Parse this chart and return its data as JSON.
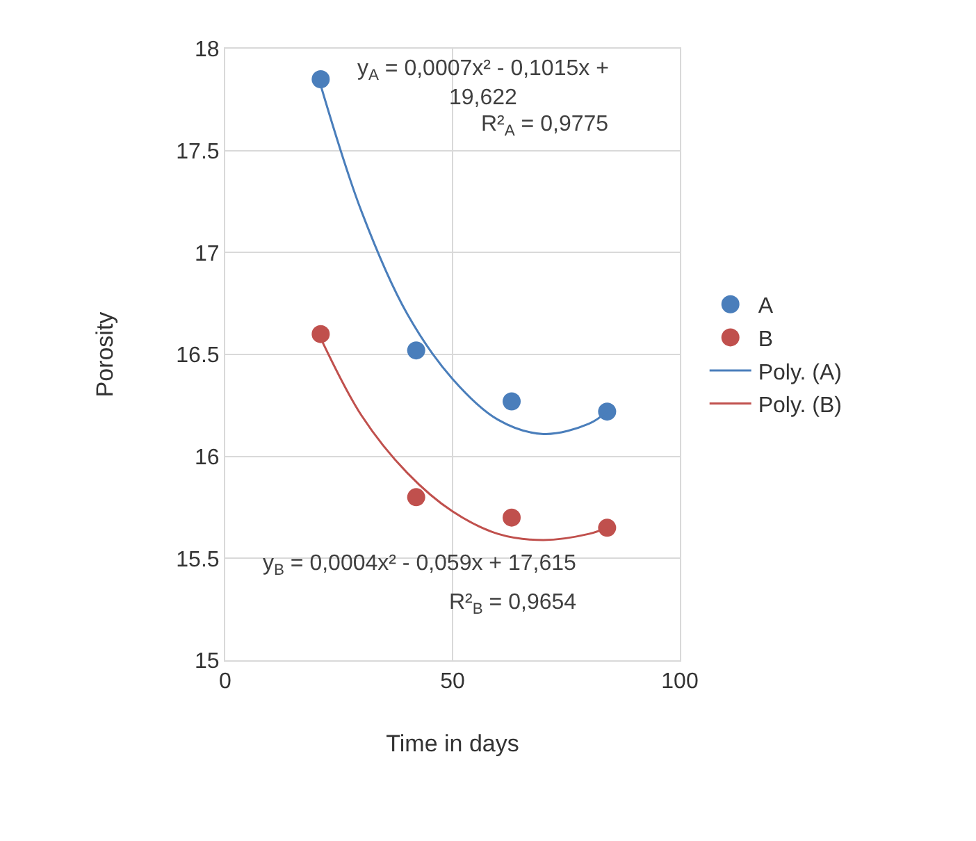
{
  "chart_data": {
    "type": "scatter",
    "xlabel": "Time in days",
    "ylabel": "Porosity",
    "xlim": [
      0,
      100
    ],
    "xticks": [
      0,
      50,
      100
    ],
    "ylim": [
      15,
      18
    ],
    "yticks": [
      15,
      15.5,
      16,
      16.5,
      17,
      17.5,
      18
    ],
    "grid": true,
    "legend": "right",
    "series": [
      {
        "name": "A",
        "marker": "circle",
        "color": "#4a7ebb",
        "x": [
          21,
          42,
          63,
          84
        ],
        "values": [
          17.85,
          16.52,
          16.27,
          16.22
        ]
      },
      {
        "name": "B",
        "marker": "circle",
        "color": "#c0504d",
        "x": [
          21,
          42,
          63,
          84
        ],
        "values": [
          16.6,
          15.8,
          15.7,
          15.65
        ]
      },
      {
        "name": "Poly. (A)",
        "type": "line",
        "marker": "none",
        "color": "#4a7ebb",
        "x": [
          21,
          30,
          40,
          50,
          60,
          70,
          80,
          84
        ],
        "values": [
          17.82,
          17.2,
          16.7,
          16.38,
          16.18,
          16.11,
          16.16,
          16.22
        ]
      },
      {
        "name": "Poly. (B)",
        "type": "line",
        "marker": "none",
        "color": "#c0504d",
        "x": [
          21,
          30,
          40,
          50,
          60,
          70,
          80,
          84
        ],
        "values": [
          16.58,
          16.2,
          15.92,
          15.73,
          15.62,
          15.59,
          15.62,
          15.65
        ]
      }
    ],
    "annotations": [
      "y$_{A}$ = 0,0007x² - 0,1015x +\n19,622",
      "R²$_{A}$ = 0,9775",
      "y$_{B}$ = 0,0004x² - 0,059x + 17,615",
      "R²$_{B}$ = 0,9654"
    ]
  }
}
